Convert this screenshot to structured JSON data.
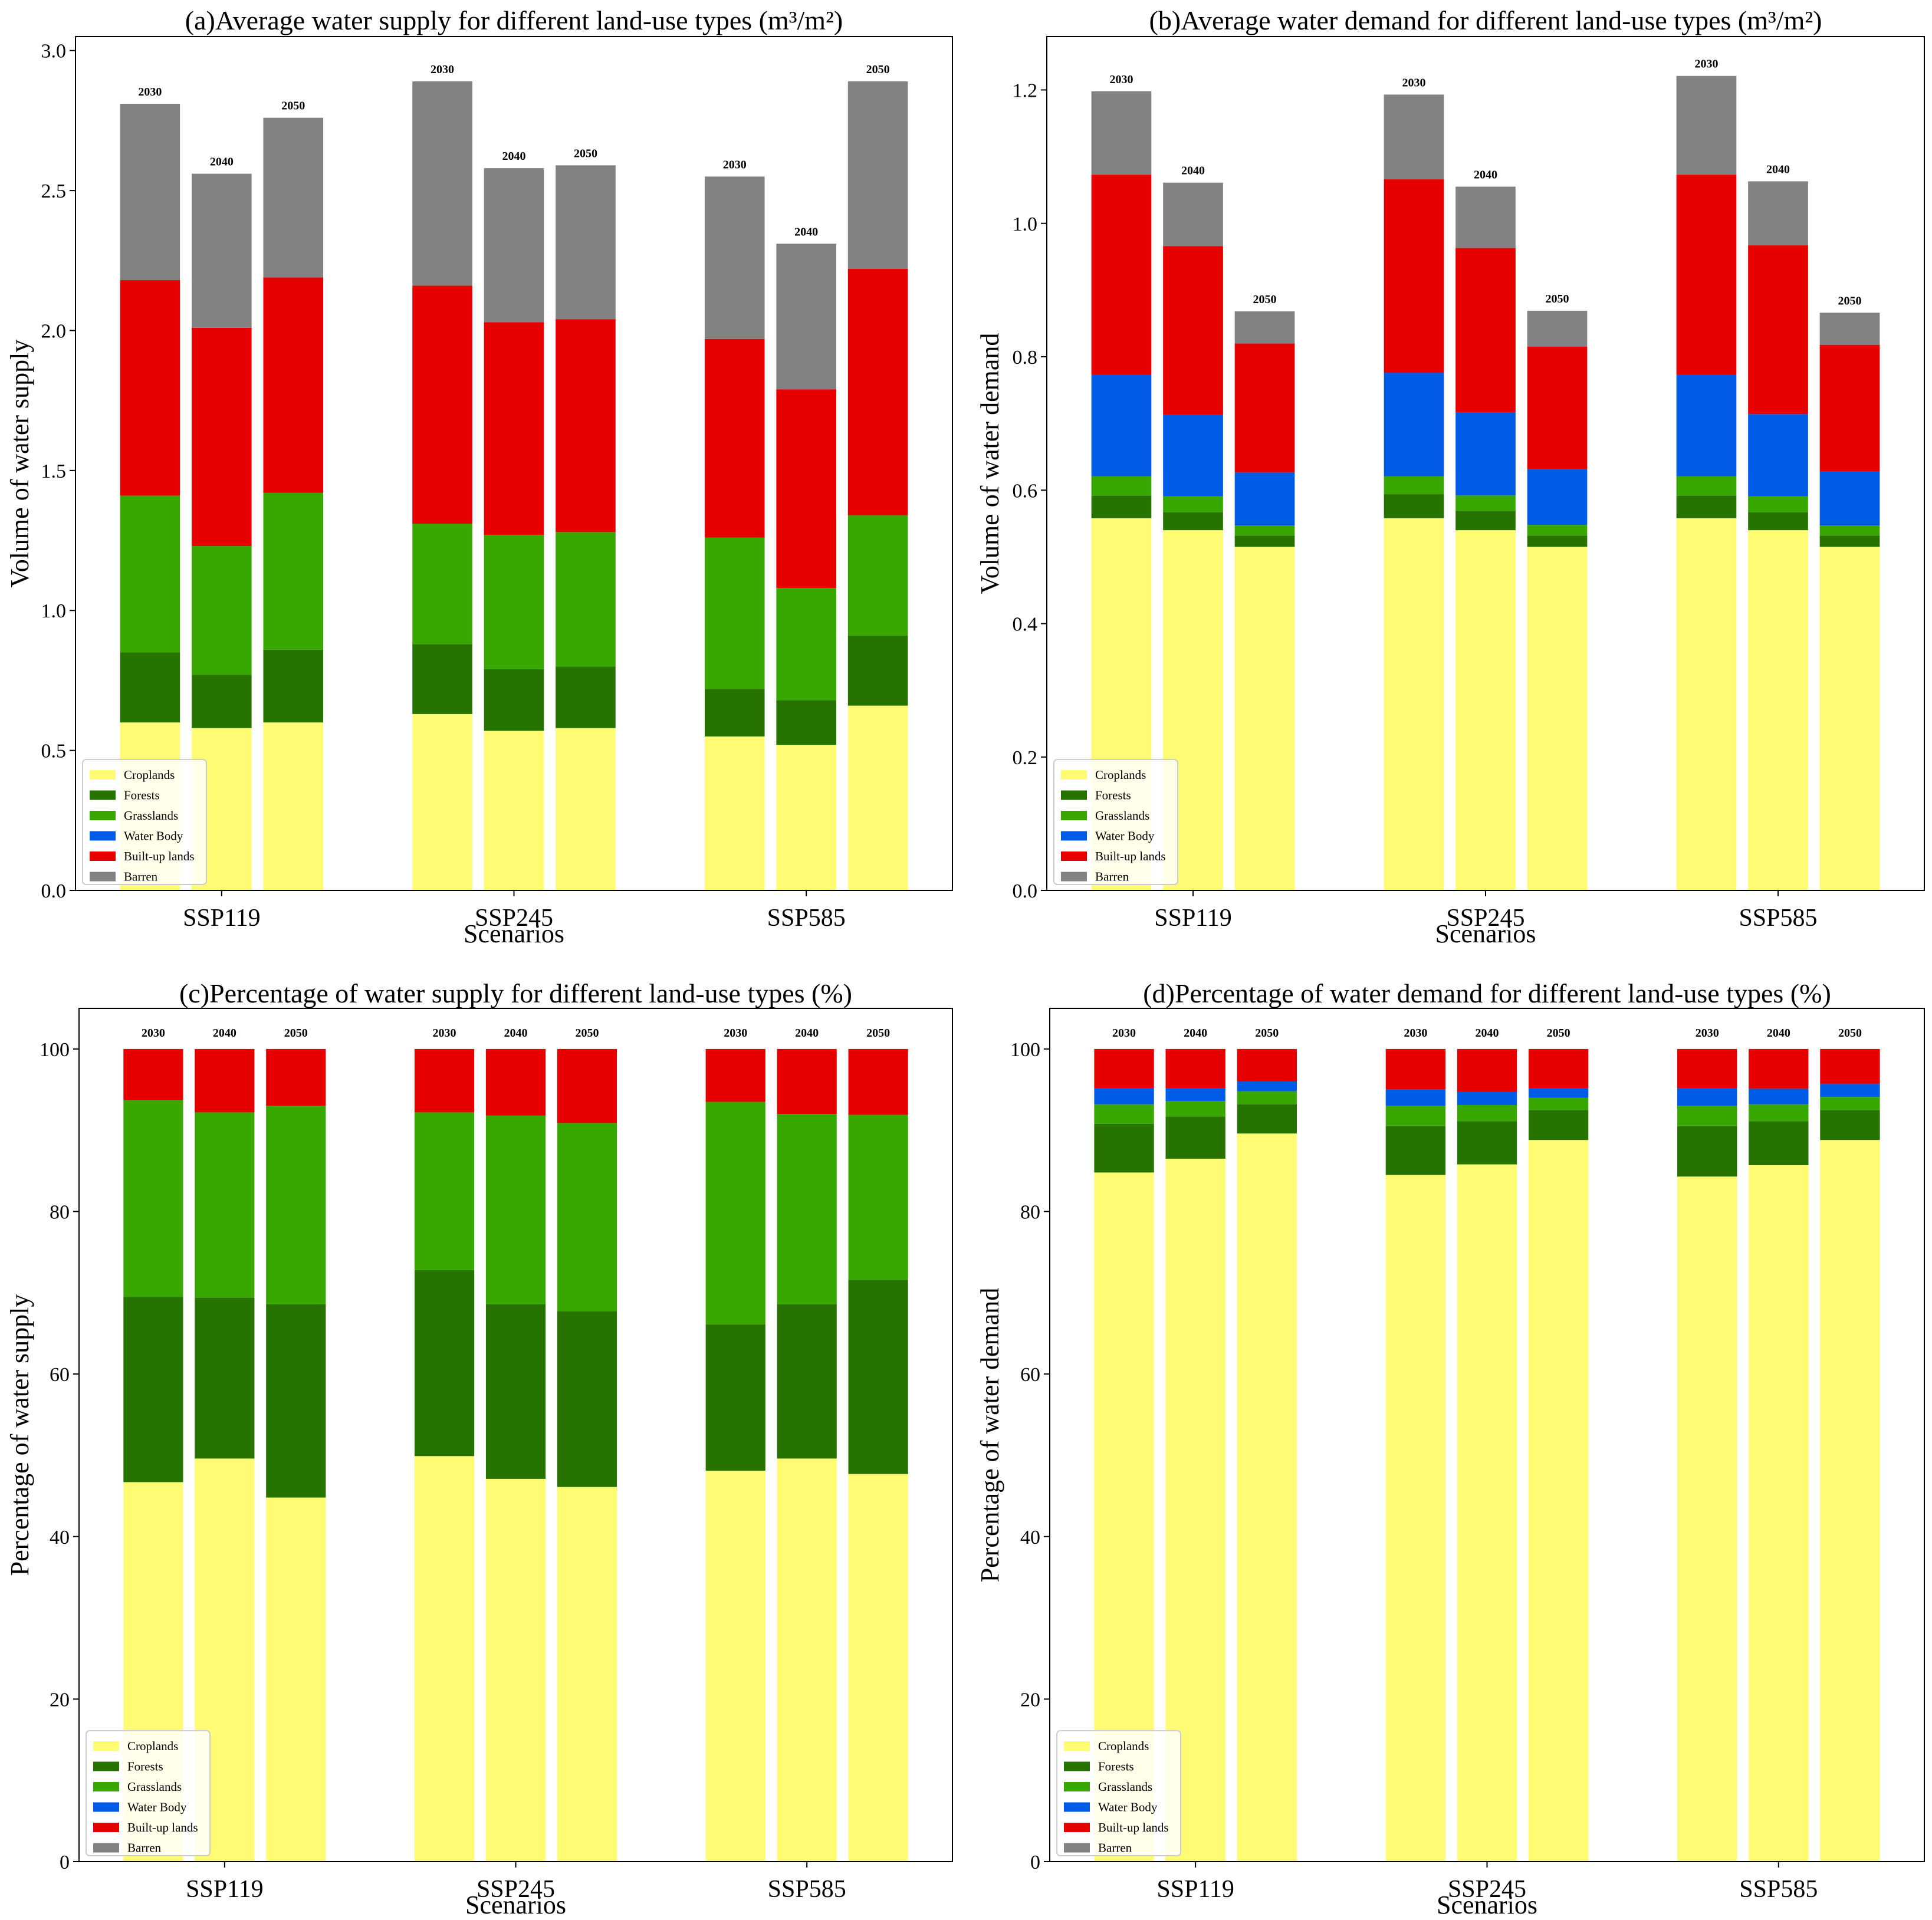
{
  "legend": [
    {
      "key": "croplands",
      "label": "Croplands",
      "color": "#FFFC74"
    },
    {
      "key": "forests",
      "label": "Forests",
      "color": "#267300"
    },
    {
      "key": "grasslands",
      "label": "Grasslands",
      "color": "#38A800"
    },
    {
      "key": "water_body",
      "label": "Water Body",
      "color": "#005CE6"
    },
    {
      "key": "built_up",
      "label": "Built-up lands",
      "color": "#E60000"
    },
    {
      "key": "barren",
      "label": "Barren",
      "color": "#828282"
    }
  ],
  "chart_data": [
    {
      "id": "a",
      "type": "bar",
      "stacked": true,
      "title": "(a)Average water supply for different land-use types (m³/m²)",
      "xlabel": "Scenarios",
      "ylabel": "Volume of water supply",
      "ylim": [
        0,
        3.05
      ],
      "yticks": [
        "0.0",
        "0.5",
        "1.0",
        "1.5",
        "2.0",
        "2.5",
        "3.0"
      ],
      "ytick_values": [
        0,
        0.5,
        1.0,
        1.5,
        2.0,
        2.5,
        3.0
      ],
      "legend_position": "lower-left",
      "categories": [
        "SSP119",
        "SSP245",
        "SSP585"
      ],
      "years": [
        "2030",
        "2040",
        "2050"
      ],
      "series": [
        {
          "name": "Croplands",
          "values": [
            [
              0.6,
              0.58,
              0.6
            ],
            [
              0.63,
              0.57,
              0.58
            ],
            [
              0.55,
              0.52,
              0.66
            ]
          ]
        },
        {
          "name": "Forests",
          "values": [
            [
              0.25,
              0.19,
              0.26
            ],
            [
              0.25,
              0.22,
              0.22
            ],
            [
              0.17,
              0.16,
              0.25
            ]
          ]
        },
        {
          "name": "Grasslands",
          "values": [
            [
              0.56,
              0.46,
              0.56
            ],
            [
              0.43,
              0.48,
              0.48
            ],
            [
              0.54,
              0.4,
              0.43
            ]
          ]
        },
        {
          "name": "Water Body",
          "values": [
            [
              0,
              0,
              0
            ],
            [
              0,
              0,
              0
            ],
            [
              0,
              0,
              0
            ]
          ]
        },
        {
          "name": "Built-up lands",
          "values": [
            [
              0.77,
              0.78,
              0.77
            ],
            [
              0.85,
              0.76,
              0.76
            ],
            [
              0.71,
              0.71,
              0.88
            ]
          ]
        },
        {
          "name": "Barren",
          "values": [
            [
              0.63,
              0.55,
              0.57
            ],
            [
              0.73,
              0.55,
              0.55
            ],
            [
              0.58,
              0.52,
              0.67
            ]
          ]
        }
      ]
    },
    {
      "id": "b",
      "type": "bar",
      "stacked": true,
      "title": "(b)Average water demand for different land-use types (m³/m²)",
      "xlabel": "Scenarios",
      "ylabel": "Volume of water demand",
      "ylim": [
        0,
        1.28
      ],
      "yticks": [
        "0.0",
        "0.2",
        "0.4",
        "0.6",
        "0.8",
        "1.0",
        "1.2"
      ],
      "ytick_values": [
        0,
        0.2,
        0.4,
        0.6,
        0.8,
        1.0,
        1.2
      ],
      "legend_position": "lower-left",
      "categories": [
        "SSP119",
        "SSP245",
        "SSP585"
      ],
      "years": [
        "2030",
        "2040",
        "2050"
      ],
      "series": [
        {
          "name": "Croplands",
          "values": [
            [
              0.558,
              0.54,
              0.515
            ],
            [
              0.558,
              0.54,
              0.515
            ],
            [
              0.558,
              0.54,
              0.515
            ]
          ]
        },
        {
          "name": "Forests",
          "values": [
            [
              0.034,
              0.027,
              0.017
            ],
            [
              0.036,
              0.029,
              0.017
            ],
            [
              0.034,
              0.027,
              0.017
            ]
          ]
        },
        {
          "name": "Grasslands",
          "values": [
            [
              0.029,
              0.024,
              0.015
            ],
            [
              0.027,
              0.023,
              0.016
            ],
            [
              0.029,
              0.024,
              0.015
            ]
          ]
        },
        {
          "name": "Water Body",
          "values": [
            [
              0.152,
              0.122,
              0.08
            ],
            [
              0.155,
              0.125,
              0.084
            ],
            [
              0.152,
              0.123,
              0.081
            ]
          ]
        },
        {
          "name": "Built-up lands",
          "values": [
            [
              0.3,
              0.253,
              0.193
            ],
            [
              0.29,
              0.246,
              0.183
            ],
            [
              0.3,
              0.253,
              0.19
            ]
          ]
        },
        {
          "name": "Barren",
          "values": [
            [
              0.125,
              0.095,
              0.048
            ],
            [
              0.127,
              0.092,
              0.054
            ],
            [
              0.148,
              0.096,
              0.048
            ]
          ]
        }
      ]
    },
    {
      "id": "c",
      "type": "bar",
      "stacked": true,
      "title": "(c)Percentage of water supply for different land-use types (%)",
      "xlabel": "Scenarios",
      "ylabel": "Percentage of water supply",
      "ylim": [
        0,
        105
      ],
      "yticks": [
        "0",
        "20",
        "40",
        "60",
        "80",
        "100"
      ],
      "ytick_values": [
        0,
        20,
        40,
        60,
        80,
        100
      ],
      "legend_position": "lower-left",
      "categories": [
        "SSP119",
        "SSP245",
        "SSP585"
      ],
      "years": [
        "2030",
        "2040",
        "2050"
      ],
      "series": [
        {
          "name": "Croplands",
          "values": [
            [
              46.7,
              49.6,
              44.8
            ],
            [
              49.9,
              47.1,
              46.1
            ],
            [
              48.1,
              49.6,
              47.7
            ]
          ]
        },
        {
          "name": "Forests",
          "values": [
            [
              22.8,
              19.8,
              23.8
            ],
            [
              22.9,
              21.5,
              21.6
            ],
            [
              18.0,
              19.0,
              23.9
            ]
          ]
        },
        {
          "name": "Grasslands",
          "values": [
            [
              24.2,
              22.8,
              24.4
            ],
            [
              19.4,
              23.2,
              23.2
            ],
            [
              27.4,
              23.4,
              20.3
            ]
          ]
        },
        {
          "name": "Water Body",
          "values": [
            [
              0,
              0,
              0
            ],
            [
              0,
              0,
              0
            ],
            [
              0,
              0,
              0
            ]
          ]
        },
        {
          "name": "Built-up lands",
          "values": [
            [
              6.3,
              7.8,
              7.0
            ],
            [
              7.8,
              8.2,
              9.1
            ],
            [
              6.5,
              8.0,
              8.1
            ]
          ]
        },
        {
          "name": "Barren",
          "values": [
            [
              0,
              0,
              0
            ],
            [
              0,
              0,
              0
            ],
            [
              0,
              0,
              0
            ]
          ]
        }
      ]
    },
    {
      "id": "d",
      "type": "bar",
      "stacked": true,
      "title": "(d)Percentage of water demand for different land-use types (%)",
      "xlabel": "Scenarios",
      "ylabel": "Percentage of water demand",
      "ylim": [
        0,
        105
      ],
      "yticks": [
        "0",
        "20",
        "40",
        "60",
        "80",
        "100"
      ],
      "ytick_values": [
        0,
        20,
        40,
        60,
        80,
        100
      ],
      "legend_position": "lower-left",
      "categories": [
        "SSP119",
        "SSP245",
        "SSP585"
      ],
      "years": [
        "2030",
        "2040",
        "2050"
      ],
      "series": [
        {
          "name": "Croplands",
          "values": [
            [
              84.8,
              86.5,
              89.6
            ],
            [
              84.5,
              85.8,
              88.8
            ],
            [
              84.3,
              85.7,
              88.8
            ]
          ]
        },
        {
          "name": "Forests",
          "values": [
            [
              6.0,
              5.2,
              3.6
            ],
            [
              6.0,
              5.3,
              3.7
            ],
            [
              6.2,
              5.4,
              3.7
            ]
          ]
        },
        {
          "name": "Grasslands",
          "values": [
            [
              2.4,
              1.9,
              1.6
            ],
            [
              2.5,
              2.0,
              1.5
            ],
            [
              2.5,
              2.1,
              1.6
            ]
          ]
        },
        {
          "name": "Water Body",
          "values": [
            [
              2.0,
              1.6,
              1.2
            ],
            [
              2.0,
              1.6,
              1.2
            ],
            [
              2.2,
              1.9,
              1.6
            ]
          ]
        },
        {
          "name": "Built-up lands",
          "values": [
            [
              4.8,
              4.8,
              4.0
            ],
            [
              5.0,
              5.3,
              4.8
            ],
            [
              4.8,
              4.9,
              4.3
            ]
          ]
        },
        {
          "name": "Barren",
          "values": [
            [
              0,
              0,
              0
            ],
            [
              0,
              0,
              0
            ],
            [
              0,
              0,
              0
            ]
          ]
        }
      ]
    }
  ]
}
